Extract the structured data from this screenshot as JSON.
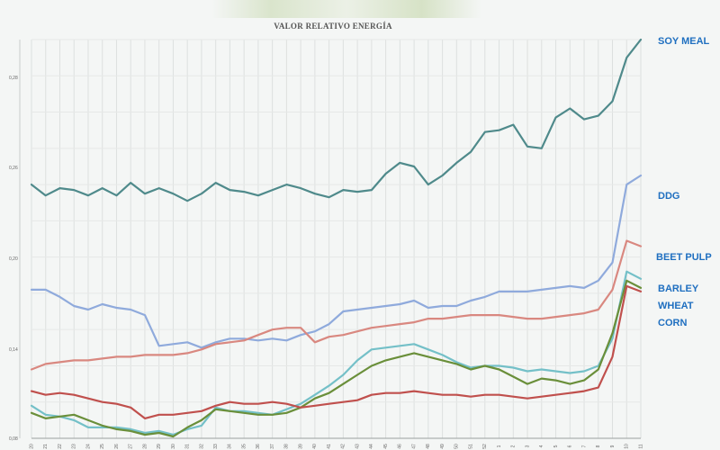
{
  "chart_data": {
    "type": "line",
    "title": "VALOR RELATIVO ENERGÍA",
    "xlabel": "",
    "ylabel": "",
    "x": [
      "20",
      "21",
      "22",
      "23",
      "24",
      "25",
      "26",
      "27",
      "28",
      "29",
      "30",
      "31",
      "32",
      "33",
      "34",
      "35",
      "36",
      "37",
      "38",
      "39",
      "40",
      "41",
      "42",
      "43",
      "44",
      "45",
      "46",
      "47",
      "48",
      "49",
      "50",
      "51",
      "52",
      "1",
      "2",
      "3",
      "4",
      "5",
      "6",
      "7",
      "8",
      "9",
      "10",
      "11"
    ],
    "ylim": [
      0.08,
      0.3
    ],
    "y_ticks": [
      "0,08",
      "0,14",
      "0,20",
      "0,26",
      "0,28"
    ],
    "grid": true,
    "legend": "right, labels at line ends",
    "series": [
      {
        "name": "SOY MEAL",
        "color": "#4f8a8b",
        "label_color": "#1f6fc0",
        "values": [
          0.22,
          0.214,
          0.218,
          0.217,
          0.214,
          0.218,
          0.214,
          0.221,
          0.215,
          0.218,
          0.215,
          0.211,
          0.215,
          0.221,
          0.217,
          0.216,
          0.214,
          0.217,
          0.22,
          0.218,
          0.215,
          0.213,
          0.217,
          0.216,
          0.217,
          0.226,
          0.232,
          0.23,
          0.22,
          0.225,
          0.232,
          0.238,
          0.249,
          0.25,
          0.253,
          0.241,
          0.24,
          0.257,
          0.262,
          0.256,
          0.258,
          0.266,
          0.29,
          0.3
        ]
      },
      {
        "name": "DDG",
        "color": "#8faadc",
        "label_color": "#1f6fc0",
        "values": [
          0.162,
          0.162,
          0.158,
          0.153,
          0.151,
          0.154,
          0.152,
          0.151,
          0.148,
          0.131,
          0.132,
          0.133,
          0.13,
          0.133,
          0.135,
          0.135,
          0.134,
          0.135,
          0.134,
          0.137,
          0.139,
          0.143,
          0.15,
          0.151,
          0.152,
          0.153,
          0.154,
          0.156,
          0.152,
          0.153,
          0.153,
          0.156,
          0.158,
          0.161,
          0.161,
          0.161,
          0.162,
          0.163,
          0.164,
          0.163,
          0.167,
          0.177,
          0.22,
          0.225
        ]
      },
      {
        "name": "BEET PULP",
        "color": "#d98880",
        "label_color": "#1f6fc0",
        "values": [
          0.118,
          0.121,
          0.122,
          0.123,
          0.123,
          0.124,
          0.125,
          0.125,
          0.126,
          0.126,
          0.126,
          0.127,
          0.129,
          0.132,
          0.133,
          0.134,
          0.137,
          0.14,
          0.141,
          0.141,
          0.133,
          0.136,
          0.137,
          0.139,
          0.141,
          0.142,
          0.143,
          0.144,
          0.146,
          0.146,
          0.147,
          0.148,
          0.148,
          0.148,
          0.147,
          0.146,
          0.146,
          0.147,
          0.148,
          0.149,
          0.151,
          0.162,
          0.189,
          0.186
        ]
      },
      {
        "name": "BARLEY",
        "color": "#74c0c8",
        "label_color": "#1f6fc0",
        "values": [
          0.098,
          0.093,
          0.092,
          0.09,
          0.086,
          0.086,
          0.086,
          0.085,
          0.083,
          0.084,
          0.082,
          0.085,
          0.087,
          0.097,
          0.095,
          0.095,
          0.094,
          0.093,
          0.096,
          0.099,
          0.104,
          0.109,
          0.115,
          0.123,
          0.129,
          0.13,
          0.131,
          0.132,
          0.129,
          0.126,
          0.122,
          0.119,
          0.12,
          0.12,
          0.119,
          0.117,
          0.118,
          0.117,
          0.116,
          0.117,
          0.12,
          0.135,
          0.172,
          0.168
        ]
      },
      {
        "name": "WHEAT",
        "color": "#6a8f3a",
        "label_color": "#1f6fc0",
        "values": [
          0.094,
          0.091,
          0.092,
          0.093,
          0.09,
          0.087,
          0.085,
          0.084,
          0.082,
          0.083,
          0.081,
          0.086,
          0.09,
          0.096,
          0.095,
          0.094,
          0.093,
          0.093,
          0.094,
          0.097,
          0.102,
          0.105,
          0.11,
          0.115,
          0.12,
          0.123,
          0.125,
          0.127,
          0.125,
          0.123,
          0.121,
          0.118,
          0.12,
          0.118,
          0.114,
          0.11,
          0.113,
          0.112,
          0.11,
          0.112,
          0.118,
          0.138,
          0.167,
          0.163
        ]
      },
      {
        "name": "CORN",
        "color": "#c0504d",
        "label_color": "#1f6fc0",
        "values": [
          0.106,
          0.104,
          0.105,
          0.104,
          0.102,
          0.1,
          0.099,
          0.097,
          0.091,
          0.093,
          0.093,
          0.094,
          0.095,
          0.098,
          0.1,
          0.099,
          0.099,
          0.1,
          0.099,
          0.097,
          0.098,
          0.099,
          0.1,
          0.101,
          0.104,
          0.105,
          0.105,
          0.106,
          0.105,
          0.104,
          0.104,
          0.103,
          0.104,
          0.104,
          0.103,
          0.102,
          0.103,
          0.104,
          0.105,
          0.106,
          0.108,
          0.125,
          0.164,
          0.161
        ]
      }
    ]
  }
}
